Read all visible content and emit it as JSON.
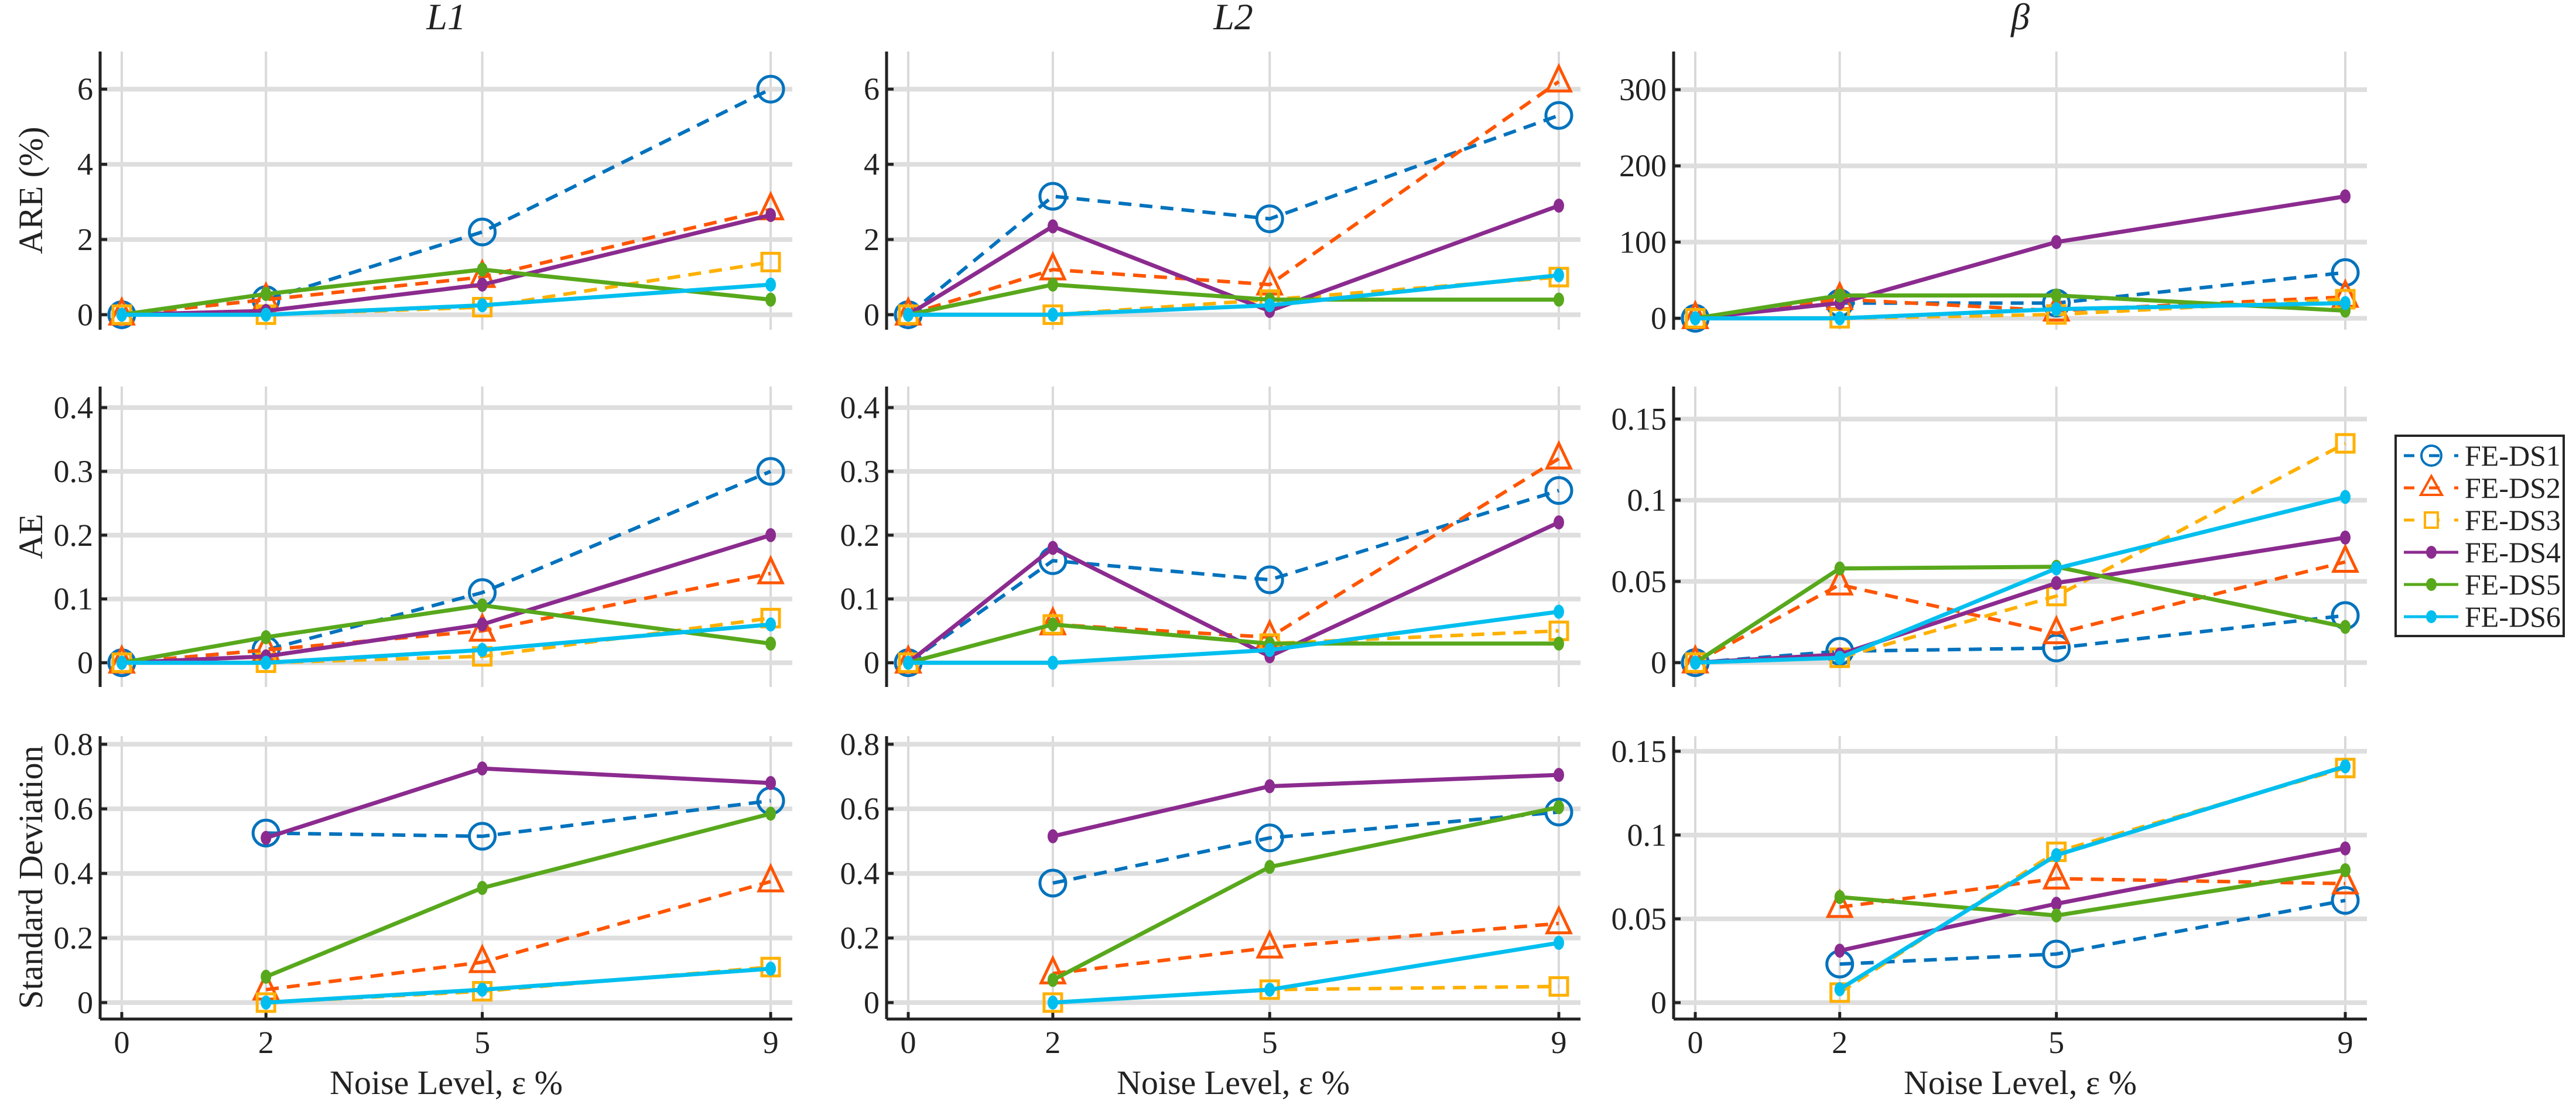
{
  "chart_data": {
    "type": "line",
    "x": [
      0,
      2,
      5,
      9
    ],
    "xlabel": "Noise Level, ε %",
    "xticks": [
      "0",
      "2",
      "5",
      "9"
    ],
    "xlim": [
      -0.3,
      9.3
    ],
    "column_titles": [
      "L1",
      "L2",
      "β"
    ],
    "row_ylabels": [
      "ARE (%)",
      "AE",
      "Standard Deviation"
    ],
    "legend": {
      "placement": "right",
      "entries": [
        "FE-DS1",
        "FE-DS2",
        "FE-DS3",
        "FE-DS4",
        "FE-DS5",
        "FE-DS6"
      ]
    },
    "series_style": [
      {
        "name": "FE-DS1",
        "color": "#0072BD",
        "dash": true,
        "marker": "circle"
      },
      {
        "name": "FE-DS2",
        "color": "#FF5500",
        "dash": true,
        "marker": "triangle"
      },
      {
        "name": "FE-DS3",
        "color": "#FFB000",
        "dash": true,
        "marker": "square"
      },
      {
        "name": "FE-DS4",
        "color": "#8B2B8F",
        "dash": false,
        "marker": "dot"
      },
      {
        "name": "FE-DS5",
        "color": "#58A81C",
        "dash": false,
        "marker": "dot"
      },
      {
        "name": "FE-DS6",
        "color": "#00BFEF",
        "dash": false,
        "marker": "dot"
      }
    ],
    "grid": true,
    "panels": [
      {
        "row": 0,
        "col": 0,
        "ylim": [
          -0.4,
          7
        ],
        "yticks": [
          "0",
          "2",
          "4",
          "6"
        ],
        "ytick_values": [
          0,
          2,
          4,
          6
        ],
        "x": [
          0,
          2,
          5,
          9
        ],
        "series": [
          [
            0,
            0.4,
            2.2,
            6.0
          ],
          [
            0,
            0.4,
            1.0,
            2.8
          ],
          [
            0,
            0,
            0.2,
            1.4
          ],
          [
            0,
            0.1,
            0.8,
            2.65
          ],
          [
            0,
            0.55,
            1.2,
            0.4
          ],
          [
            0,
            0,
            0.25,
            0.8
          ]
        ]
      },
      {
        "row": 0,
        "col": 1,
        "ylim": [
          -0.4,
          7
        ],
        "yticks": [
          "0",
          "2",
          "4",
          "6"
        ],
        "ytick_values": [
          0,
          2,
          4,
          6
        ],
        "x": [
          0,
          2,
          5,
          9
        ],
        "series": [
          [
            0,
            3.15,
            2.55,
            5.3
          ],
          [
            0,
            1.2,
            0.8,
            6.2
          ],
          [
            0,
            0,
            0.4,
            1.0
          ],
          [
            0,
            2.35,
            0.1,
            2.9
          ],
          [
            0,
            0.8,
            0.4,
            0.4
          ],
          [
            0,
            0,
            0.25,
            1.05
          ]
        ]
      },
      {
        "row": 0,
        "col": 2,
        "ylim": [
          -15,
          350
        ],
        "yticks": [
          "0",
          "100",
          "200",
          "300"
        ],
        "ytick_values": [
          0,
          100,
          200,
          300
        ],
        "x": [
          0,
          2,
          5,
          9
        ],
        "series": [
          [
            0,
            20,
            20,
            60
          ],
          [
            0,
            25,
            10,
            28
          ],
          [
            0,
            0,
            5,
            25
          ],
          [
            0,
            20,
            100,
            160
          ],
          [
            0,
            30,
            30,
            10
          ],
          [
            0,
            0,
            12,
            20
          ]
        ]
      },
      {
        "row": 1,
        "col": 0,
        "ylim": [
          -0.038,
          0.433
        ],
        "yticks": [
          "0",
          "0.1",
          "0.2",
          "0.3",
          "0.4"
        ],
        "ytick_values": [
          0,
          0.1,
          0.2,
          0.3,
          0.4
        ],
        "x": [
          0,
          2,
          5,
          9
        ],
        "series": [
          [
            0,
            0.02,
            0.11,
            0.3
          ],
          [
            0,
            0.02,
            0.05,
            0.14
          ],
          [
            0,
            0,
            0.01,
            0.07
          ],
          [
            0,
            0.01,
            0.06,
            0.2
          ],
          [
            0,
            0.04,
            0.09,
            0.03
          ],
          [
            0,
            0,
            0.02,
            0.06
          ]
        ]
      },
      {
        "row": 1,
        "col": 1,
        "ylim": [
          -0.038,
          0.433
        ],
        "yticks": [
          "0",
          "0.1",
          "0.2",
          "0.3",
          "0.4"
        ],
        "ytick_values": [
          0,
          0.1,
          0.2,
          0.3,
          0.4
        ],
        "x": [
          0,
          2,
          5,
          9
        ],
        "series": [
          [
            0,
            0.16,
            0.13,
            0.27
          ],
          [
            0,
            0.06,
            0.04,
            0.32
          ],
          [
            0,
            0.06,
            0.03,
            0.05
          ],
          [
            0,
            0.18,
            0.01,
            0.22
          ],
          [
            0,
            0.06,
            0.03,
            0.03
          ],
          [
            0,
            0,
            0.02,
            0.08
          ]
        ]
      },
      {
        "row": 1,
        "col": 2,
        "ylim": [
          -0.015,
          0.17
        ],
        "yticks": [
          "0",
          "0.05",
          "0.1",
          "0.15"
        ],
        "ytick_values": [
          0,
          0.05,
          0.1,
          0.15
        ],
        "x": [
          0,
          2,
          5,
          9
        ],
        "series": [
          [
            0,
            0.007,
            0.009,
            0.029
          ],
          [
            0,
            0.048,
            0.018,
            0.062
          ],
          [
            0,
            0.003,
            0.041,
            0.135
          ],
          [
            0,
            0.005,
            0.049,
            0.077
          ],
          [
            0,
            0.058,
            0.059,
            0.022
          ],
          [
            0,
            0.003,
            0.058,
            0.102
          ]
        ]
      },
      {
        "row": 2,
        "col": 0,
        "ylim": [
          -0.051,
          0.825
        ],
        "yticks": [
          "0",
          "0.2",
          "0.4",
          "0.6",
          "0.8"
        ],
        "ytick_values": [
          0,
          0.2,
          0.4,
          0.6,
          0.8
        ],
        "x": [
          2,
          5,
          9
        ],
        "series": [
          [
            0.525,
            0.515,
            0.625
          ],
          [
            0.04,
            0.125,
            0.375
          ],
          [
            0,
            0.035,
            0.11
          ],
          [
            0.51,
            0.725,
            0.68
          ],
          [
            0.08,
            0.355,
            0.585
          ],
          [
            0,
            0.04,
            0.105
          ]
        ]
      },
      {
        "row": 2,
        "col": 1,
        "ylim": [
          -0.051,
          0.825
        ],
        "yticks": [
          "0",
          "0.2",
          "0.4",
          "0.6",
          "0.8"
        ],
        "ytick_values": [
          0,
          0.2,
          0.4,
          0.6,
          0.8
        ],
        "x": [
          2,
          5,
          9
        ],
        "series": [
          [
            0.37,
            0.51,
            0.59
          ],
          [
            0.09,
            0.17,
            0.245
          ],
          [
            0,
            0.04,
            0.05
          ],
          [
            0.515,
            0.67,
            0.705
          ],
          [
            0.07,
            0.42,
            0.605
          ],
          [
            0,
            0.04,
            0.185
          ]
        ]
      },
      {
        "row": 2,
        "col": 2,
        "ylim": [
          -0.0098,
          0.159
        ],
        "yticks": [
          "0",
          "0.05",
          "0.1",
          "0.15"
        ],
        "ytick_values": [
          0,
          0.05,
          0.1,
          0.15
        ],
        "x": [
          2,
          5,
          9
        ],
        "series": [
          [
            0.023,
            0.029,
            0.061
          ],
          [
            0.057,
            0.074,
            0.071
          ],
          [
            0.006,
            0.09,
            0.14
          ],
          [
            0.031,
            0.059,
            0.092
          ],
          [
            0.063,
            0.052,
            0.079
          ],
          [
            0.008,
            0.088,
            0.141
          ]
        ]
      }
    ]
  }
}
